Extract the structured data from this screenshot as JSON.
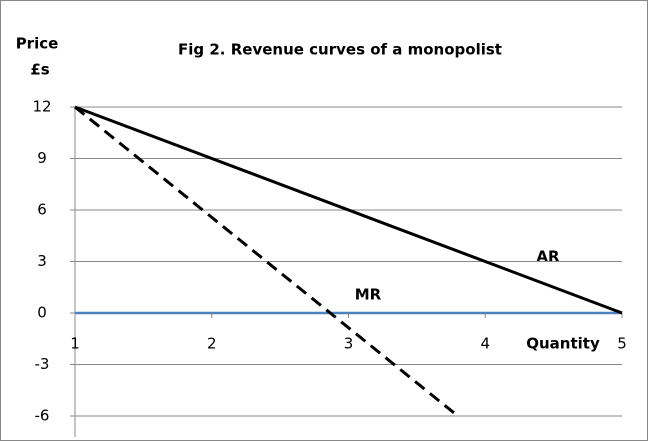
{
  "chart_data": {
    "type": "line",
    "title": "Fig 2. Revenue curves of a monopolist",
    "ylabel": [
      "Price",
      "£s"
    ],
    "xlabel": "Quantity",
    "xlim": [
      1,
      5
    ],
    "xticks": [
      1,
      2,
      3,
      4,
      5
    ],
    "ylim": [
      -6,
      12
    ],
    "yticks": [
      -6,
      -3,
      0,
      3,
      6,
      9,
      12
    ],
    "grid": true,
    "zero_line_color": "#4f81bd",
    "series": [
      {
        "name": "AR",
        "color": "#000000",
        "dash": false,
        "x": [
          1,
          5
        ],
        "values": [
          12,
          0
        ]
      },
      {
        "name": "MR",
        "color": "#000000",
        "dash": true,
        "x": [
          1,
          3.8
        ],
        "values": [
          12,
          -6
        ]
      }
    ],
    "annotations": [
      "AR",
      "MR"
    ]
  }
}
